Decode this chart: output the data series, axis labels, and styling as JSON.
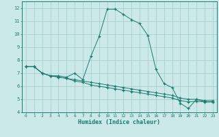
{
  "xlabel": "Humidex (Indice chaleur)",
  "background_color": "#cce9e9",
  "grid_color": "#aacece",
  "line_color": "#1a7a6e",
  "xlim": [
    -0.5,
    23.5
  ],
  "ylim": [
    4,
    12.5
  ],
  "xticks": [
    0,
    1,
    2,
    3,
    4,
    5,
    6,
    7,
    8,
    9,
    10,
    11,
    12,
    13,
    14,
    15,
    16,
    17,
    18,
    19,
    20,
    21,
    22,
    23
  ],
  "yticks": [
    4,
    5,
    6,
    7,
    8,
    9,
    10,
    11,
    12
  ],
  "series1": [
    [
      0,
      7.5
    ],
    [
      1,
      7.5
    ],
    [
      2,
      7.0
    ],
    [
      3,
      6.8
    ],
    [
      4,
      6.8
    ],
    [
      5,
      6.7
    ],
    [
      6,
      7.0
    ],
    [
      7,
      6.5
    ],
    [
      8,
      8.3
    ],
    [
      9,
      9.8
    ],
    [
      10,
      11.9
    ],
    [
      11,
      11.9
    ],
    [
      12,
      11.5
    ],
    [
      13,
      11.1
    ],
    [
      14,
      10.8
    ],
    [
      15,
      9.9
    ],
    [
      16,
      7.3
    ],
    [
      17,
      6.2
    ],
    [
      18,
      5.9
    ],
    [
      19,
      4.7
    ],
    [
      20,
      4.3
    ],
    [
      21,
      5.0
    ],
    [
      22,
      4.8
    ],
    [
      23,
      4.8
    ]
  ],
  "series2": [
    [
      0,
      7.5
    ],
    [
      1,
      7.5
    ],
    [
      2,
      7.0
    ],
    [
      3,
      6.8
    ],
    [
      4,
      6.7
    ],
    [
      5,
      6.6
    ],
    [
      6,
      6.5
    ],
    [
      7,
      6.4
    ],
    [
      8,
      6.3
    ],
    [
      9,
      6.2
    ],
    [
      10,
      6.1
    ],
    [
      11,
      6.0
    ],
    [
      12,
      5.9
    ],
    [
      13,
      5.8
    ],
    [
      14,
      5.7
    ],
    [
      15,
      5.6
    ],
    [
      16,
      5.5
    ],
    [
      17,
      5.4
    ],
    [
      18,
      5.3
    ],
    [
      19,
      5.1
    ],
    [
      20,
      5.0
    ],
    [
      21,
      5.0
    ],
    [
      22,
      4.9
    ],
    [
      23,
      4.9
    ]
  ],
  "series3": [
    [
      0,
      7.5
    ],
    [
      1,
      7.5
    ],
    [
      2,
      7.0
    ],
    [
      3,
      6.8
    ],
    [
      4,
      6.7
    ],
    [
      5,
      6.6
    ],
    [
      6,
      6.4
    ],
    [
      7,
      6.3
    ],
    [
      8,
      6.1
    ],
    [
      9,
      6.0
    ],
    [
      10,
      5.9
    ],
    [
      11,
      5.8
    ],
    [
      12,
      5.7
    ],
    [
      13,
      5.6
    ],
    [
      14,
      5.5
    ],
    [
      15,
      5.4
    ],
    [
      16,
      5.3
    ],
    [
      17,
      5.2
    ],
    [
      18,
      5.1
    ],
    [
      19,
      4.9
    ],
    [
      20,
      4.8
    ],
    [
      21,
      4.85
    ],
    [
      22,
      4.8
    ],
    [
      23,
      4.8
    ]
  ]
}
